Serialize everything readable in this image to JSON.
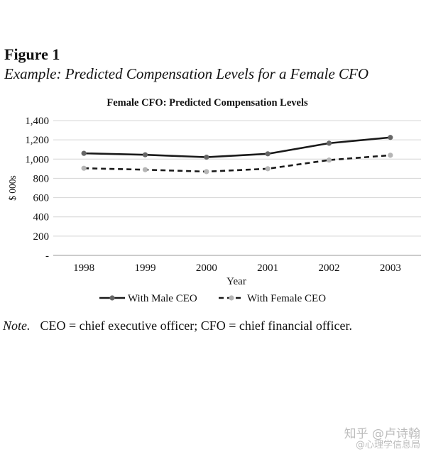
{
  "figure": {
    "label": "Figure 1",
    "subtitle": "Example: Predicted Compensation Levels for a Female CFO"
  },
  "chart_data": {
    "type": "line",
    "title": "Female CFO: Predicted Compensation Levels",
    "xlabel": "Year",
    "ylabel": "$ 000s",
    "categories": [
      "1998",
      "1999",
      "2000",
      "2001",
      "2002",
      "2003"
    ],
    "y_tick_labels": [
      "-",
      "200",
      "400",
      "600",
      "800",
      "1,000",
      "1,200",
      "1,400"
    ],
    "ylim": [
      0,
      1400
    ],
    "grid": true,
    "legend_position": "bottom",
    "series": [
      {
        "name": "With Male CEO",
        "values": [
          1060,
          1045,
          1020,
          1055,
          1165,
          1225
        ],
        "color": "#1a1a1a",
        "marker_color": "#666666",
        "style": "solid"
      },
      {
        "name": "With Female CEO",
        "values": [
          905,
          890,
          870,
          900,
          990,
          1040
        ],
        "color": "#1a1a1a",
        "marker_color": "#b5b5b5",
        "style": "dashed"
      }
    ]
  },
  "note": {
    "lead": "Note.",
    "text": "CEO = chief executive officer; CFO = chief financial officer."
  },
  "watermark": {
    "line1": "知乎 @卢诗翰",
    "line2": "@心理学信息局"
  }
}
